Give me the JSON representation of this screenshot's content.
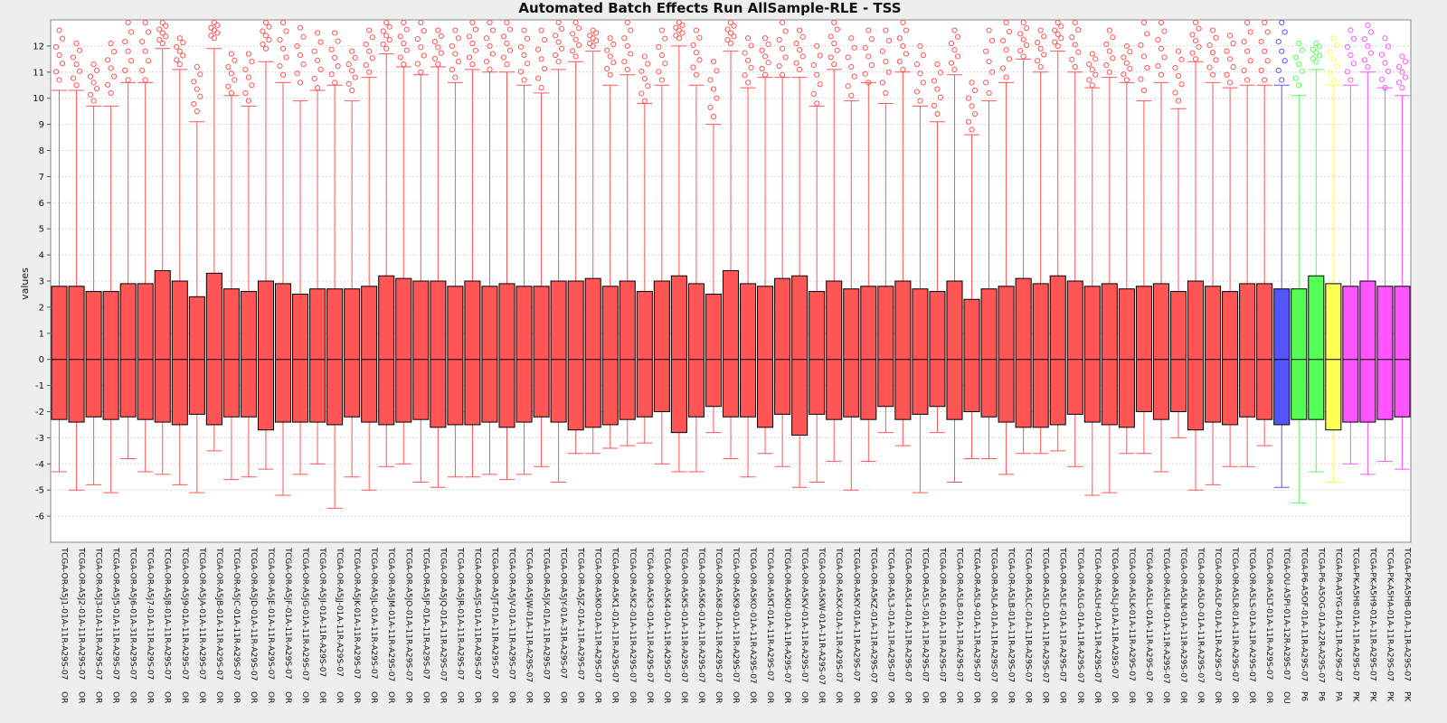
{
  "chart_data": {
    "type": "box",
    "title": "Automated Batch Effects Run AllSample-RLE - TSS",
    "ylabel": "values",
    "xlabel": "",
    "ylim": [
      -7,
      13
    ],
    "y_ticks": [
      -6,
      -5,
      -4,
      -3,
      -2,
      -1,
      0,
      1,
      2,
      3,
      4,
      5,
      6,
      7,
      8,
      9,
      10,
      11,
      12
    ],
    "grid": true,
    "legend": "none",
    "colors": {
      "OR": "#ff5555",
      "OU": "#5555ff",
      "P6": "#55ff55",
      "PA": "#ffff55",
      "PK": "#ff55ff"
    },
    "categories": [
      "TCGA-OR-A5J1-01A-11R-A29S-07",
      "TCGA-OR-A5J2-01A-11R-A29S-07",
      "TCGA-OR-A5J3-01A-11R-A29S-07",
      "TCGA-OR-A5J5-01A-11R-A29S-07",
      "TCGA-OR-A5J6-01A-31R-A29S-07",
      "TCGA-OR-A5J7-01A-11R-A29S-07",
      "TCGA-OR-A5J8-01A-11R-A29S-07",
      "TCGA-OR-A5J9-01A-11R-A29S-07",
      "TCGA-OR-A5JA-01A-11R-A29S-07",
      "TCGA-OR-A5JB-01A-11R-A29S-07",
      "TCGA-OR-A5JC-01A-11R-A29S-07",
      "TCGA-OR-A5JD-01A-11R-A29S-07",
      "TCGA-OR-A5JE-01A-11R-A29S-07",
      "TCGA-OR-A5JF-01A-11R-A29S-07",
      "TCGA-OR-A5JG-01A-11R-A29S-07",
      "TCGA-OR-A5JI-01A-11R-A29S-07",
      "TCGA-OR-A5JJ-01A-11R-A29S-07",
      "TCGA-OR-A5JK-01A-11R-A29S-07",
      "TCGA-OR-A5JL-01A-11R-A29S-07",
      "TCGA-OR-A5JM-01A-11R-A29S-07",
      "TCGA-OR-A5JO-01A-11R-A29S-07",
      "TCGA-OR-A5JP-01A-11R-A29S-07",
      "TCGA-OR-A5JQ-01A-11R-A29S-07",
      "TCGA-OR-A5JR-01A-11R-A29S-07",
      "TCGA-OR-A5JS-01A-11R-A29S-07",
      "TCGA-OR-A5JT-01A-11R-A29S-07",
      "TCGA-OR-A5JV-01A-11R-A29S-07",
      "TCGA-OR-A5JW-01A-11R-A29S-07",
      "TCGA-OR-A5JX-01A-11R-A29S-07",
      "TCGA-OR-A5JY-01A-31R-A29S-07",
      "TCGA-OR-A5JZ-01A-11R-A29S-07",
      "TCGA-OR-A5K0-01A-11R-A29S-07",
      "TCGA-OR-A5K1-01A-11R-A29S-07",
      "TCGA-OR-A5K2-01A-11R-A29S-07",
      "TCGA-OR-A5K3-01A-11R-A29S-07",
      "TCGA-OR-A5K4-01A-11R-A29S-07",
      "TCGA-OR-A5K5-01A-11R-A29S-07",
      "TCGA-OR-A5K6-01A-11R-A29S-07",
      "TCGA-OR-A5K8-01A-11R-A29S-07",
      "TCGA-OR-A5K9-01A-11R-A29S-07",
      "TCGA-OR-A5KO-01A-11R-A29S-07",
      "TCGA-OR-A5KT-01A-11R-A29S-07",
      "TCGA-OR-A5KU-01A-11R-A29S-07",
      "TCGA-OR-A5KV-01A-11R-A29S-07",
      "TCGA-OR-A5KW-01A-11R-A29S-07",
      "TCGA-OR-A5KX-01A-11R-A29S-07",
      "TCGA-OR-A5KY-01A-11R-A29S-07",
      "TCGA-OR-A5KZ-01A-11R-A29S-07",
      "TCGA-OR-A5L3-01A-11R-A29S-07",
      "TCGA-OR-A5L4-01A-11R-A29S-07",
      "TCGA-OR-A5L5-01A-11R-A29S-07",
      "TCGA-OR-A5L6-01A-11R-A29S-07",
      "TCGA-OR-A5L8-01A-11R-A29S-07",
      "TCGA-OR-A5L9-01A-11R-A29S-07",
      "TCGA-OR-A5LA-01A-11R-A29S-07",
      "TCGA-OR-A5LB-01A-11R-A29S-07",
      "TCGA-OR-A5LC-01A-11R-A29S-07",
      "TCGA-OR-A5LD-01A-11R-A29S-07",
      "TCGA-OR-A5LE-01A-11R-A29S-07",
      "TCGA-OR-A5LG-01A-11R-A29S-07",
      "TCGA-OR-A5LH-01A-11R-A29S-07",
      "TCGA-OR-A5LJ-01A-11R-A29S-07",
      "TCGA-OR-A5LK-01A-11R-A29S-07",
      "TCGA-OR-A5LL-01A-11R-A29S-07",
      "TCGA-OR-A5LM-01A-11R-A29S-07",
      "TCGA-OR-A5LN-01A-11R-A29S-07",
      "TCGA-OR-A5LO-01A-11R-A29S-07",
      "TCGA-OR-A5LP-01A-11R-A29S-07",
      "TCGA-OR-A5LR-01A-11R-A29S-07",
      "TCGA-OR-A5LS-01A-11R-A29S-07",
      "TCGA-OR-A5LT-01A-11R-A29S-07",
      "TCGA-OU-A5PI-01A-12R-A29S-07",
      "TCGA-P6-A5OF-01A-11R-A29S-07",
      "TCGA-P6-A5OG-01A-22R-A29S-07",
      "TCGA-PA-A5YG-01A-11R-A29S-07",
      "TCGA-PK-A5H8-01A-11R-A29S-07",
      "TCGA-PK-A5H9-01A-11R-A29S-07",
      "TCGA-PK-A5HA-01A-11R-A29S-07",
      "TCGA-PK-A5HB-01A-11R-A29S-07"
    ],
    "batch": [
      "OR",
      "OR",
      "OR",
      "OR",
      "OR",
      "OR",
      "OR",
      "OR",
      "OR",
      "OR",
      "OR",
      "OR",
      "OR",
      "OR",
      "OR",
      "OR",
      "OR",
      "OR",
      "OR",
      "OR",
      "OR",
      "OR",
      "OR",
      "OR",
      "OR",
      "OR",
      "OR",
      "OR",
      "OR",
      "OR",
      "OR",
      "OR",
      "OR",
      "OR",
      "OR",
      "OR",
      "OR",
      "OR",
      "OR",
      "OR",
      "OR",
      "OR",
      "OR",
      "OR",
      "OR",
      "OR",
      "OR",
      "OR",
      "OR",
      "OR",
      "OR",
      "OR",
      "OR",
      "OR",
      "OR",
      "OR",
      "OR",
      "OR",
      "OR",
      "OR",
      "OR",
      "OR",
      "OR",
      "OR",
      "OR",
      "OR",
      "OR",
      "OR",
      "OR",
      "OR",
      "OR",
      "OU",
      "P6",
      "P6",
      "PA",
      "PK",
      "PK",
      "PK",
      "PK"
    ],
    "q1": [
      -2.3,
      -2.4,
      -2.2,
      -2.3,
      -2.2,
      -2.3,
      -2.4,
      -2.5,
      -2.1,
      -2.5,
      -2.2,
      -2.2,
      -2.7,
      -2.4,
      -2.4,
      -2.4,
      -2.5,
      -2.2,
      -2.4,
      -2.5,
      -2.4,
      -2.3,
      -2.6,
      -2.5,
      -2.5,
      -2.4,
      -2.6,
      -2.4,
      -2.2,
      -2.4,
      -2.7,
      -2.6,
      -2.5,
      -2.3,
      -2.2,
      -2.0,
      -2.8,
      -2.2,
      -1.8,
      -2.2,
      -2.2,
      -2.6,
      -2.1,
      -2.9,
      -2.1,
      -2.3,
      -2.2,
      -2.3,
      -1.8,
      -2.3,
      -2.1,
      -1.8,
      -2.3,
      -2.0,
      -2.2,
      -2.4,
      -2.6,
      -2.6,
      -2.5,
      -2.1,
      -2.4,
      -2.5,
      -2.6,
      -2.0,
      -2.3,
      -2.0,
      -2.7,
      -2.4,
      -2.5,
      -2.2,
      -2.3,
      -2.5,
      -2.3,
      -2.3,
      -2.7,
      -2.4,
      -2.4,
      -2.3,
      -2.2
    ],
    "q3": [
      2.8,
      2.8,
      2.6,
      2.6,
      2.9,
      2.9,
      3.4,
      3.0,
      2.4,
      3.3,
      2.7,
      2.6,
      3.0,
      2.9,
      2.5,
      2.7,
      2.7,
      2.7,
      2.8,
      3.2,
      3.1,
      3.0,
      3.0,
      2.8,
      3.0,
      2.8,
      2.9,
      2.8,
      2.8,
      3.0,
      3.0,
      3.1,
      2.8,
      3.0,
      2.6,
      3.0,
      3.2,
      2.9,
      2.5,
      3.4,
      2.9,
      2.8,
      3.1,
      3.2,
      2.6,
      3.0,
      2.7,
      2.8,
      2.8,
      3.0,
      2.7,
      2.6,
      3.0,
      2.3,
      2.7,
      2.8,
      3.1,
      2.9,
      3.2,
      3.0,
      2.8,
      2.9,
      2.7,
      2.8,
      2.9,
      2.6,
      3.0,
      2.8,
      2.6,
      2.9,
      2.9,
      2.7,
      2.7,
      3.2,
      2.9,
      2.8,
      3.0,
      2.8,
      2.8
    ],
    "median": [
      0,
      0,
      0,
      0,
      0,
      0,
      0,
      0,
      0,
      0,
      0,
      0,
      0,
      0,
      0,
      0,
      0,
      0,
      0,
      0,
      0,
      0,
      0,
      0,
      0,
      0,
      0,
      0,
      0,
      0,
      0,
      0,
      0,
      0,
      0,
      0,
      0,
      0,
      0,
      0,
      0,
      0,
      0,
      0,
      0,
      0,
      0,
      0,
      0,
      0,
      0,
      0,
      0,
      0,
      0,
      0,
      0,
      0,
      0,
      0,
      0,
      0,
      0,
      0,
      0,
      0,
      0,
      0,
      0,
      0,
      0,
      0,
      0,
      0,
      0,
      0,
      0,
      0,
      0
    ],
    "whisker_low": [
      -4.3,
      -5.0,
      -4.8,
      -5.1,
      -3.8,
      -4.3,
      -4.4,
      -4.8,
      -5.1,
      -3.5,
      -4.6,
      -4.5,
      -4.2,
      -5.2,
      -4.4,
      -4.0,
      -5.7,
      -4.5,
      -5.0,
      -4.1,
      -4.0,
      -4.7,
      -4.9,
      -4.5,
      -4.5,
      -4.4,
      -4.6,
      -4.4,
      -4.1,
      -4.7,
      -3.6,
      -3.6,
      -3.4,
      -3.3,
      -3.2,
      -4.0,
      -4.3,
      -4.3,
      -2.8,
      -3.8,
      -4.5,
      -3.6,
      -4.1,
      -4.9,
      -4.7,
      -3.9,
      -5.0,
      -3.9,
      -2.8,
      -3.3,
      -5.1,
      -2.8,
      -4.7,
      -3.8,
      -3.8,
      -4.4,
      -3.6,
      -3.6,
      -3.5,
      -4.1,
      -5.2,
      -5.1,
      -3.6,
      -3.6,
      -4.3,
      -3.0,
      -5.0,
      -4.8,
      -4.1,
      -4.1,
      -3.3,
      -4.9,
      -5.5,
      -4.3,
      -4.7,
      -4.0,
      -4.4,
      -3.9,
      -4.2
    ],
    "whisker_high": [
      10.3,
      10.3,
      9.7,
      9.7,
      10.6,
      10.6,
      11.9,
      11.1,
      9.1,
      11.9,
      10.1,
      9.7,
      11.4,
      10.6,
      9.9,
      10.3,
      10.5,
      9.9,
      10.8,
      11.7,
      11.2,
      10.9,
      11.2,
      10.6,
      11.1,
      11.0,
      11.0,
      10.5,
      10.2,
      11.1,
      11.4,
      11.8,
      10.5,
      10.9,
      9.8,
      10.5,
      12.0,
      10.5,
      9.0,
      11.8,
      10.4,
      10.8,
      10.8,
      10.8,
      9.7,
      11.1,
      9.9,
      10.6,
      9.8,
      11.0,
      9.7,
      9.1,
      10.9,
      8.6,
      9.9,
      10.6,
      11.5,
      11.0,
      11.8,
      11.0,
      10.4,
      10.8,
      10.6,
      9.9,
      10.6,
      9.6,
      11.4,
      10.6,
      10.4,
      10.5,
      10.5,
      10.5,
      10.1,
      11.1,
      10.5,
      10.5,
      11.0,
      10.4,
      10.1
    ],
    "outlier_range": [
      [
        10.7,
        12.6
      ],
      [
        10.5,
        12.1
      ],
      [
        9.9,
        11.3
      ],
      [
        10.2,
        12.1
      ],
      [
        10.7,
        12.9
      ],
      [
        10.7,
        12.9
      ],
      [
        12.1,
        12.9
      ],
      [
        11.3,
        12.3
      ],
      [
        9.5,
        11.2
      ],
      [
        12.3,
        12.9
      ],
      [
        10.2,
        11.7
      ],
      [
        9.9,
        11.7
      ],
      [
        11.9,
        12.9
      ],
      [
        10.9,
        12.9
      ],
      [
        10.6,
        12.7
      ],
      [
        10.4,
        12.5
      ],
      [
        10.6,
        12.5
      ],
      [
        10.3,
        11.8
      ],
      [
        11.0,
        12.6
      ],
      [
        11.9,
        12.9
      ],
      [
        11.3,
        12.9
      ],
      [
        11.0,
        12.9
      ],
      [
        11.3,
        12.6
      ],
      [
        10.8,
        12.6
      ],
      [
        11.3,
        12.9
      ],
      [
        11.1,
        12.9
      ],
      [
        11.3,
        12.9
      ],
      [
        10.7,
        12.6
      ],
      [
        10.4,
        12.6
      ],
      [
        11.4,
        12.9
      ],
      [
        11.6,
        12.9
      ],
      [
        12.0,
        12.6
      ],
      [
        10.9,
        12.3
      ],
      [
        11.1,
        12.9
      ],
      [
        9.9,
        11.6
      ],
      [
        10.7,
        12.6
      ],
      [
        12.3,
        12.9
      ],
      [
        10.9,
        12.6
      ],
      [
        9.3,
        11.4
      ],
      [
        12.1,
        12.9
      ],
      [
        10.6,
        12.3
      ],
      [
        10.9,
        12.3
      ],
      [
        10.9,
        12.9
      ],
      [
        11.1,
        12.6
      ],
      [
        9.8,
        12.0
      ],
      [
        11.3,
        12.9
      ],
      [
        10.1,
        12.3
      ],
      [
        10.6,
        12.6
      ],
      [
        10.2,
        12.6
      ],
      [
        11.1,
        12.9
      ],
      [
        9.9,
        12.0
      ],
      [
        9.4,
        11.3
      ],
      [
        11.1,
        12.6
      ],
      [
        8.8,
        10.6
      ],
      [
        10.2,
        12.6
      ],
      [
        10.8,
        12.9
      ],
      [
        11.6,
        12.9
      ],
      [
        11.2,
        12.6
      ],
      [
        12.0,
        12.9
      ],
      [
        11.2,
        12.9
      ],
      [
        10.5,
        11.7
      ],
      [
        11.0,
        12.6
      ],
      [
        10.7,
        12.0
      ],
      [
        10.3,
        12.9
      ],
      [
        10.9,
        12.9
      ],
      [
        9.9,
        11.8
      ],
      [
        11.5,
        12.9
      ],
      [
        10.9,
        12.6
      ],
      [
        10.6,
        12.4
      ],
      [
        10.7,
        12.9
      ],
      [
        10.7,
        12.9
      ],
      [
        10.7,
        12.9
      ],
      [
        10.5,
        12.1
      ],
      [
        11.4,
        12.1
      ],
      [
        10.7,
        12.3
      ],
      [
        10.7,
        12.6
      ],
      [
        11.2,
        12.8
      ],
      [
        10.4,
        12.3
      ],
      [
        10.4,
        11.6
      ]
    ]
  }
}
